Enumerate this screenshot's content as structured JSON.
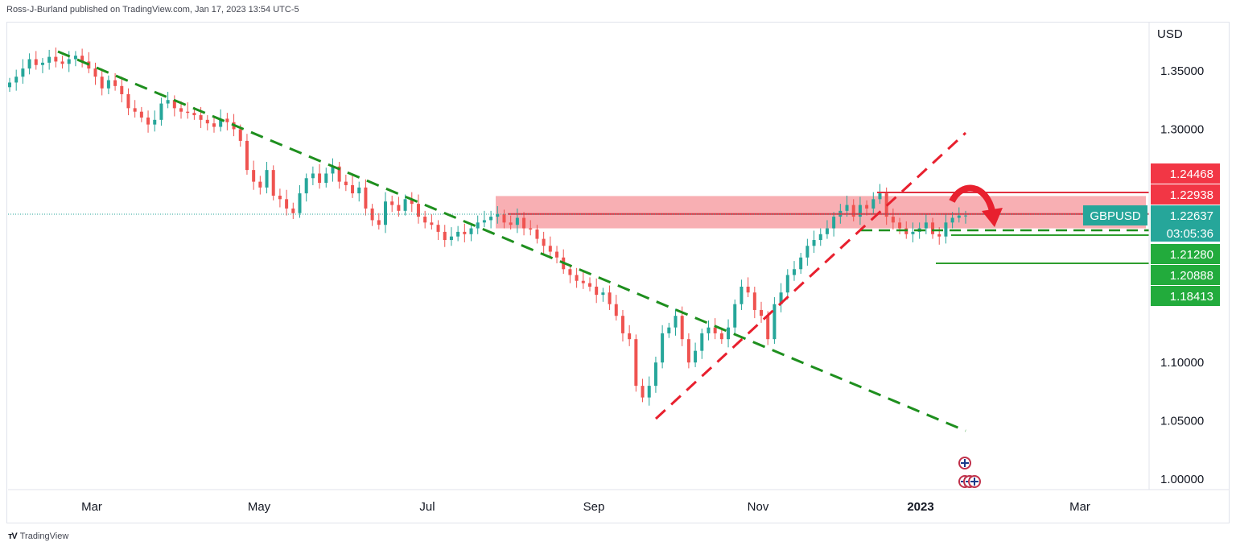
{
  "header": {
    "published": "Ross-J-Burland published on TradingView.com, Jan 17, 2023 13:54 UTC-5"
  },
  "footer": {
    "brand": "TradingView",
    "logo": "tv-logo-icon"
  },
  "colors": {
    "up": "#26a69a",
    "down": "#ef5350",
    "resistance_zone": "#f7a1a6",
    "support": "#2e9e2e",
    "downtrend": "#1e8f1e",
    "uptrend": "#e8202e",
    "symbol_tag": "#26a69a"
  },
  "chart_data": {
    "type": "candlestick",
    "symbol": "GBPUSD",
    "currency_label": "USD",
    "y_ticks": [
      "1.35000",
      "1.30000",
      "1.10000",
      "1.05000",
      "1.00000"
    ],
    "y_tick_values": [
      1.35,
      1.3,
      1.1,
      1.05,
      1.0
    ],
    "x_labels": [
      "Mar",
      "May",
      "Jul",
      "Sep",
      "Nov",
      "2023",
      "Mar"
    ],
    "price_tags": [
      {
        "label": "1.24468",
        "value": 1.24468,
        "color": "#f23645"
      },
      {
        "label": "1.22938",
        "value": 1.22938,
        "color": "#f23645"
      },
      {
        "label": "1.22637",
        "value": 1.22637,
        "color": "#26a69a",
        "symbol": "GBPUSD",
        "countdown": "03:05:36"
      },
      {
        "label": "1.21280",
        "value": 1.2128,
        "color": "#22ab3c"
      },
      {
        "label": "1.20888",
        "value": 1.20888,
        "color": "#22ab3c"
      },
      {
        "label": "1.18413",
        "value": 1.18413,
        "color": "#22ab3c"
      }
    ],
    "closes": [
      1.34,
      1.345,
      1.352,
      1.36,
      1.355,
      1.357,
      1.362,
      1.358,
      1.356,
      1.36,
      1.363,
      1.358,
      1.352,
      1.345,
      1.335,
      1.342,
      1.337,
      1.33,
      1.318,
      1.315,
      1.31,
      1.304,
      1.308,
      1.322,
      1.325,
      1.318,
      1.315,
      1.314,
      1.312,
      1.308,
      1.305,
      1.302,
      1.309,
      1.306,
      1.3,
      1.29,
      1.265,
      1.255,
      1.25,
      1.265,
      1.243,
      1.24,
      1.232,
      1.228,
      1.245,
      1.258,
      1.262,
      1.254,
      1.262,
      1.268,
      1.255,
      1.252,
      1.245,
      1.25,
      1.232,
      1.222,
      1.218,
      1.238,
      1.235,
      1.23,
      1.24,
      1.236,
      1.225,
      1.22,
      1.218,
      1.212,
      1.205,
      1.208,
      1.212,
      1.21,
      1.215,
      1.22,
      1.222,
      1.225,
      1.227,
      1.22,
      1.218,
      1.224,
      1.215,
      1.214,
      1.206,
      1.2,
      1.195,
      1.19,
      1.18,
      1.175,
      1.17,
      1.168,
      1.165,
      1.158,
      1.16,
      1.15,
      1.14,
      1.125,
      1.12,
      1.08,
      1.07,
      1.08,
      1.1,
      1.125,
      1.13,
      1.14,
      1.12,
      1.1,
      1.11,
      1.125,
      1.13,
      1.125,
      1.12,
      1.13,
      1.15,
      1.165,
      1.16,
      1.145,
      1.14,
      1.12,
      1.15,
      1.16,
      1.175,
      1.18,
      1.19,
      1.2,
      1.205,
      1.21,
      1.215,
      1.225,
      1.23,
      1.235,
      1.225,
      1.235,
      1.232,
      1.24,
      1.245,
      1.225,
      1.22,
      1.215,
      1.21,
      1.212,
      1.215,
      1.22,
      1.21,
      1.208,
      1.22,
      1.224,
      1.226,
      1.226
    ],
    "annotations": [
      {
        "type": "zone",
        "from": 1.215,
        "to": 1.2427
      },
      {
        "type": "line",
        "value": 1.2294
      },
      {
        "type": "line",
        "value": 1.2128
      },
      {
        "type": "line",
        "value": 1.2089
      },
      {
        "type": "downtrend_line",
        "style": "dashed"
      },
      {
        "type": "uptrend_line",
        "style": "dashed"
      },
      {
        "type": "arrow",
        "direction": "down"
      }
    ]
  }
}
